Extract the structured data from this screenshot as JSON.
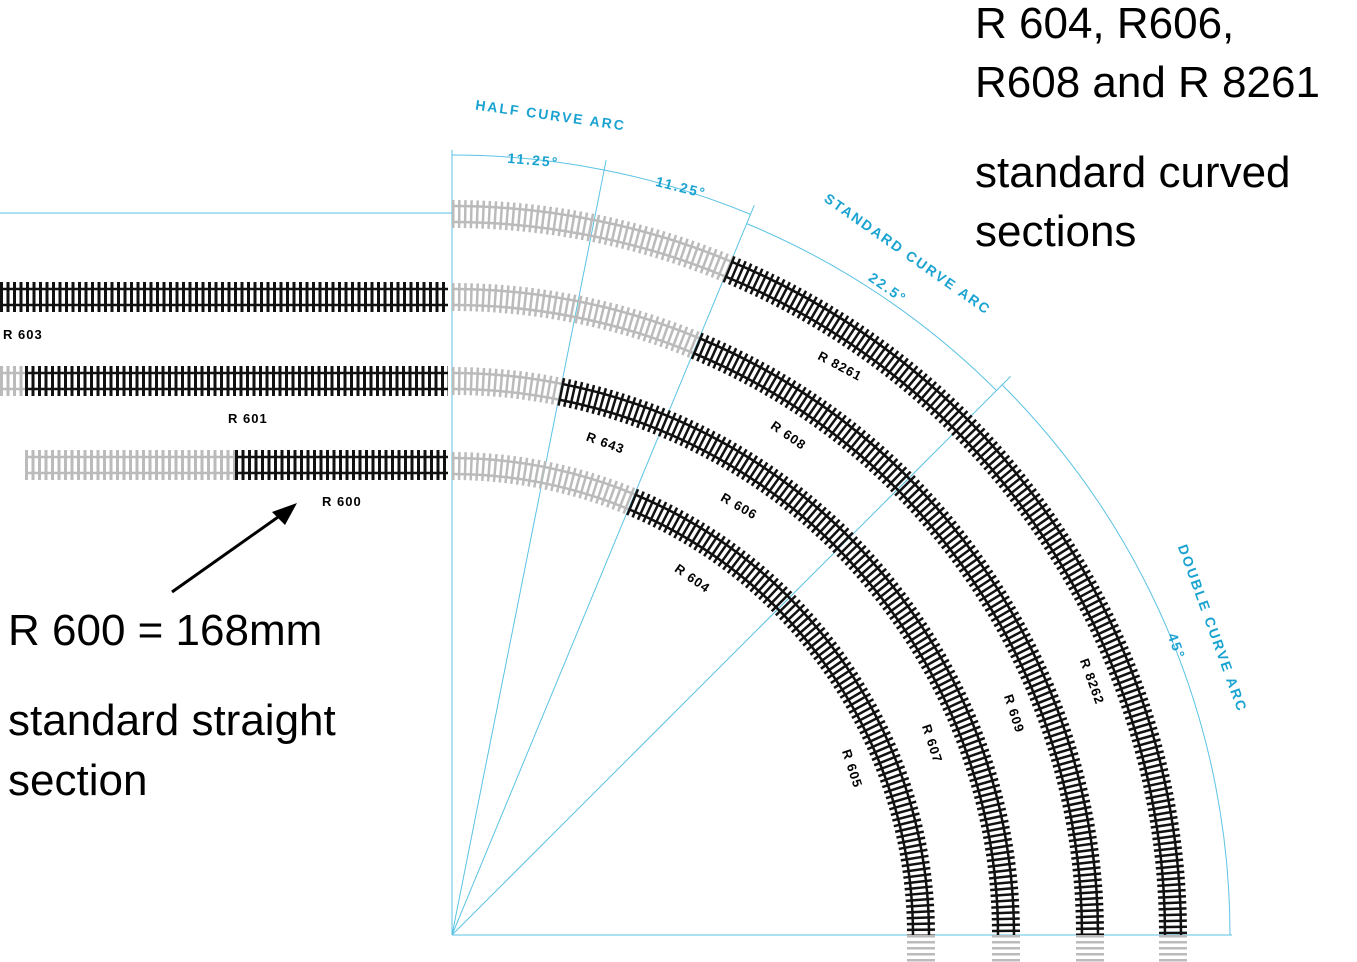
{
  "curved_note": {
    "title_lines": [
      "R 604, R606,",
      "R608 and R 8261"
    ],
    "desc_lines": [
      "standard curved",
      "sections"
    ]
  },
  "straight_note": {
    "title": "R 600 = 168mm",
    "desc_lines": [
      "standard straight",
      "section"
    ]
  },
  "arc_labels": [
    "HALF CURVE ARC",
    "11.25°",
    "11.25°",
    "STANDARD CURVE ARC",
    "22.5°",
    "DOUBLE CURVE ARC",
    "45°"
  ],
  "straight_track_labels": [
    "R 603",
    "R 601",
    "R 600"
  ],
  "curved_track_labels": [
    "R 643",
    "R 606",
    "R 604",
    "R 8261",
    "R 608",
    "R 8262",
    "R 609",
    "R 607",
    "R 605"
  ]
}
